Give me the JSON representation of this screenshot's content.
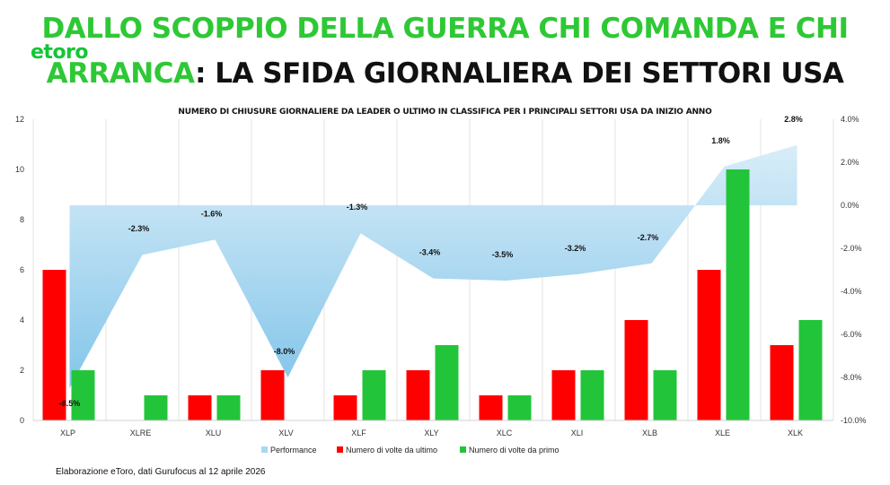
{
  "header": {
    "title_line1": "DALLO SCOPPIO DELLA GUERRA CHI COMANDA E CHI",
    "title_line2_green": "ARRANCA",
    "title_line2_rest": ": LA SFIDA GIORNALIERA DEI SETTORI USA",
    "logo": "etoro"
  },
  "footer": {
    "source": "Elaborazione eToro, dati Gurufocus al 12 aprile  2026"
  },
  "colors": {
    "ultimo": "#ff0000",
    "primo": "#22c53a",
    "performance_top": "#d6ecf8",
    "performance_bottom": "#7cc2e8"
  },
  "chart_data": {
    "type": "bar",
    "title": "NUMERO DI CHIUSURE GIORNALIERE DA LEADER O ULTIMO IN CLASSIFICA PER I PRINCIPALI SETTORI USA DA INIZIO ANNO",
    "categories": [
      "XLP",
      "XLRE",
      "XLU",
      "XLV",
      "XLF",
      "XLY",
      "XLC",
      "XLI",
      "XLB",
      "XLE",
      "XLK"
    ],
    "series": [
      {
        "name": "Numero di volte da ultimo",
        "type": "bar",
        "axis": "left",
        "values": [
          6,
          0,
          1,
          2,
          1,
          2,
          1,
          2,
          4,
          6,
          3
        ]
      },
      {
        "name": "Numero di volte da primo",
        "type": "bar",
        "axis": "left",
        "values": [
          2,
          1,
          1,
          0,
          2,
          3,
          1,
          2,
          2,
          10,
          4
        ]
      },
      {
        "name": "Performance",
        "type": "area",
        "axis": "right",
        "values": [
          -8.5,
          -2.3,
          -1.6,
          -8.0,
          -1.3,
          -3.4,
          -3.5,
          -3.2,
          -2.7,
          1.8,
          2.8
        ],
        "labels": [
          "-8.5%",
          "-2.3%",
          "-1.6%",
          "-8.0%",
          "-1.3%",
          "-3.4%",
          "-3.5%",
          "-3.2%",
          "-2.7%",
          "1.8%",
          "2.8%"
        ]
      }
    ],
    "y_left": {
      "min": 0,
      "max": 12,
      "ticks": [
        "0",
        "2",
        "4",
        "6",
        "8",
        "10",
        "12"
      ]
    },
    "y_right": {
      "min": -10,
      "max": 4,
      "ticks": [
        "-10.0%",
        "-8.0%",
        "-6.0%",
        "-4.0%",
        "-2.0%",
        "0.0%",
        "2.0%",
        "4.0%"
      ]
    },
    "grid": "vertical",
    "legend_position": "bottom"
  }
}
